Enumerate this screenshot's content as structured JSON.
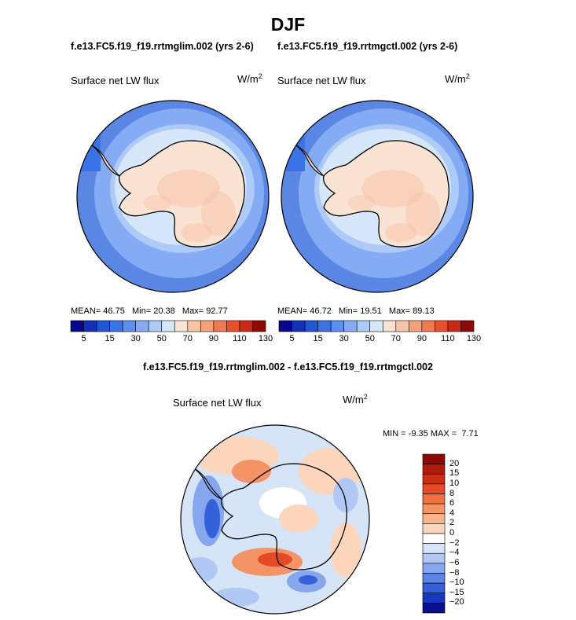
{
  "main_title": "DJF",
  "panels": [
    {
      "case_title": "f.e13.FC5.f19_f19.rrtmglim.002 (yrs 2-6)",
      "variable": "Surface net LW flux",
      "units": "W/m",
      "units_exp": "2",
      "mean_label": "MEAN=",
      "mean": "46.75",
      "min_label": "Min=",
      "min": "20.38",
      "max_label": "Max=",
      "max": "92.77"
    },
    {
      "case_title": "f.e13.FC5.f19_f19.rrtmgctl.002 (yrs 2-6)",
      "variable": "Surface net LW flux",
      "units": "W/m",
      "units_exp": "2",
      "mean_label": "MEAN=",
      "mean": "46.72",
      "min_label": "Min=",
      "min": "19.51",
      "max_label": "Max=",
      "max": "89.13"
    }
  ],
  "abs_colorbar": {
    "colors": [
      "#08068c",
      "#1230b8",
      "#1e56d6",
      "#3a73e6",
      "#5e8ff0",
      "#86abf5",
      "#aecaf8",
      "#d6e6fb",
      "#fbe3d4",
      "#f8c4a6",
      "#f4a27c",
      "#f07a52",
      "#e8502c",
      "#c82a16",
      "#8c0a06"
    ],
    "labels": [
      "5",
      "15",
      "30",
      "50",
      "70",
      "90",
      "110",
      "130"
    ]
  },
  "diff": {
    "title": "f.e13.FC5.f19_f19.rrtmglim.002 - f.e13.FC5.f19_f19.rrtmgctl.002",
    "variable": "Surface net LW flux",
    "units": "W/m",
    "units_exp": "2",
    "min_label": "MIN =",
    "min": "-9.35",
    "max_label": "MAX =",
    "max": "7.71"
  },
  "diff_colorbar": {
    "colors": [
      "#8c0a06",
      "#b01a0c",
      "#cc2e14",
      "#e44a24",
      "#f0703e",
      "#f49466",
      "#f8b48c",
      "#fbd6bc",
      "#ffffff",
      "#d6e4f8",
      "#b0c8f4",
      "#86a6ee",
      "#5c84e6",
      "#3460da",
      "#1836c0",
      "#08108c"
    ],
    "labels": [
      "20",
      "15",
      "10",
      "8",
      "6",
      "4",
      "2",
      "0",
      "−2",
      "−4",
      "−6",
      "−8",
      "−10",
      "−15",
      "−20"
    ]
  },
  "colors": {
    "ocean_far": "#5b87e4",
    "ocean_mid": "#86abf5",
    "ocean_near": "#aecaf8",
    "coast_ring": "#d6e6fb",
    "land": "#fbe3d4",
    "land_warm": "#f8c4a6",
    "coastline": "#000000"
  }
}
